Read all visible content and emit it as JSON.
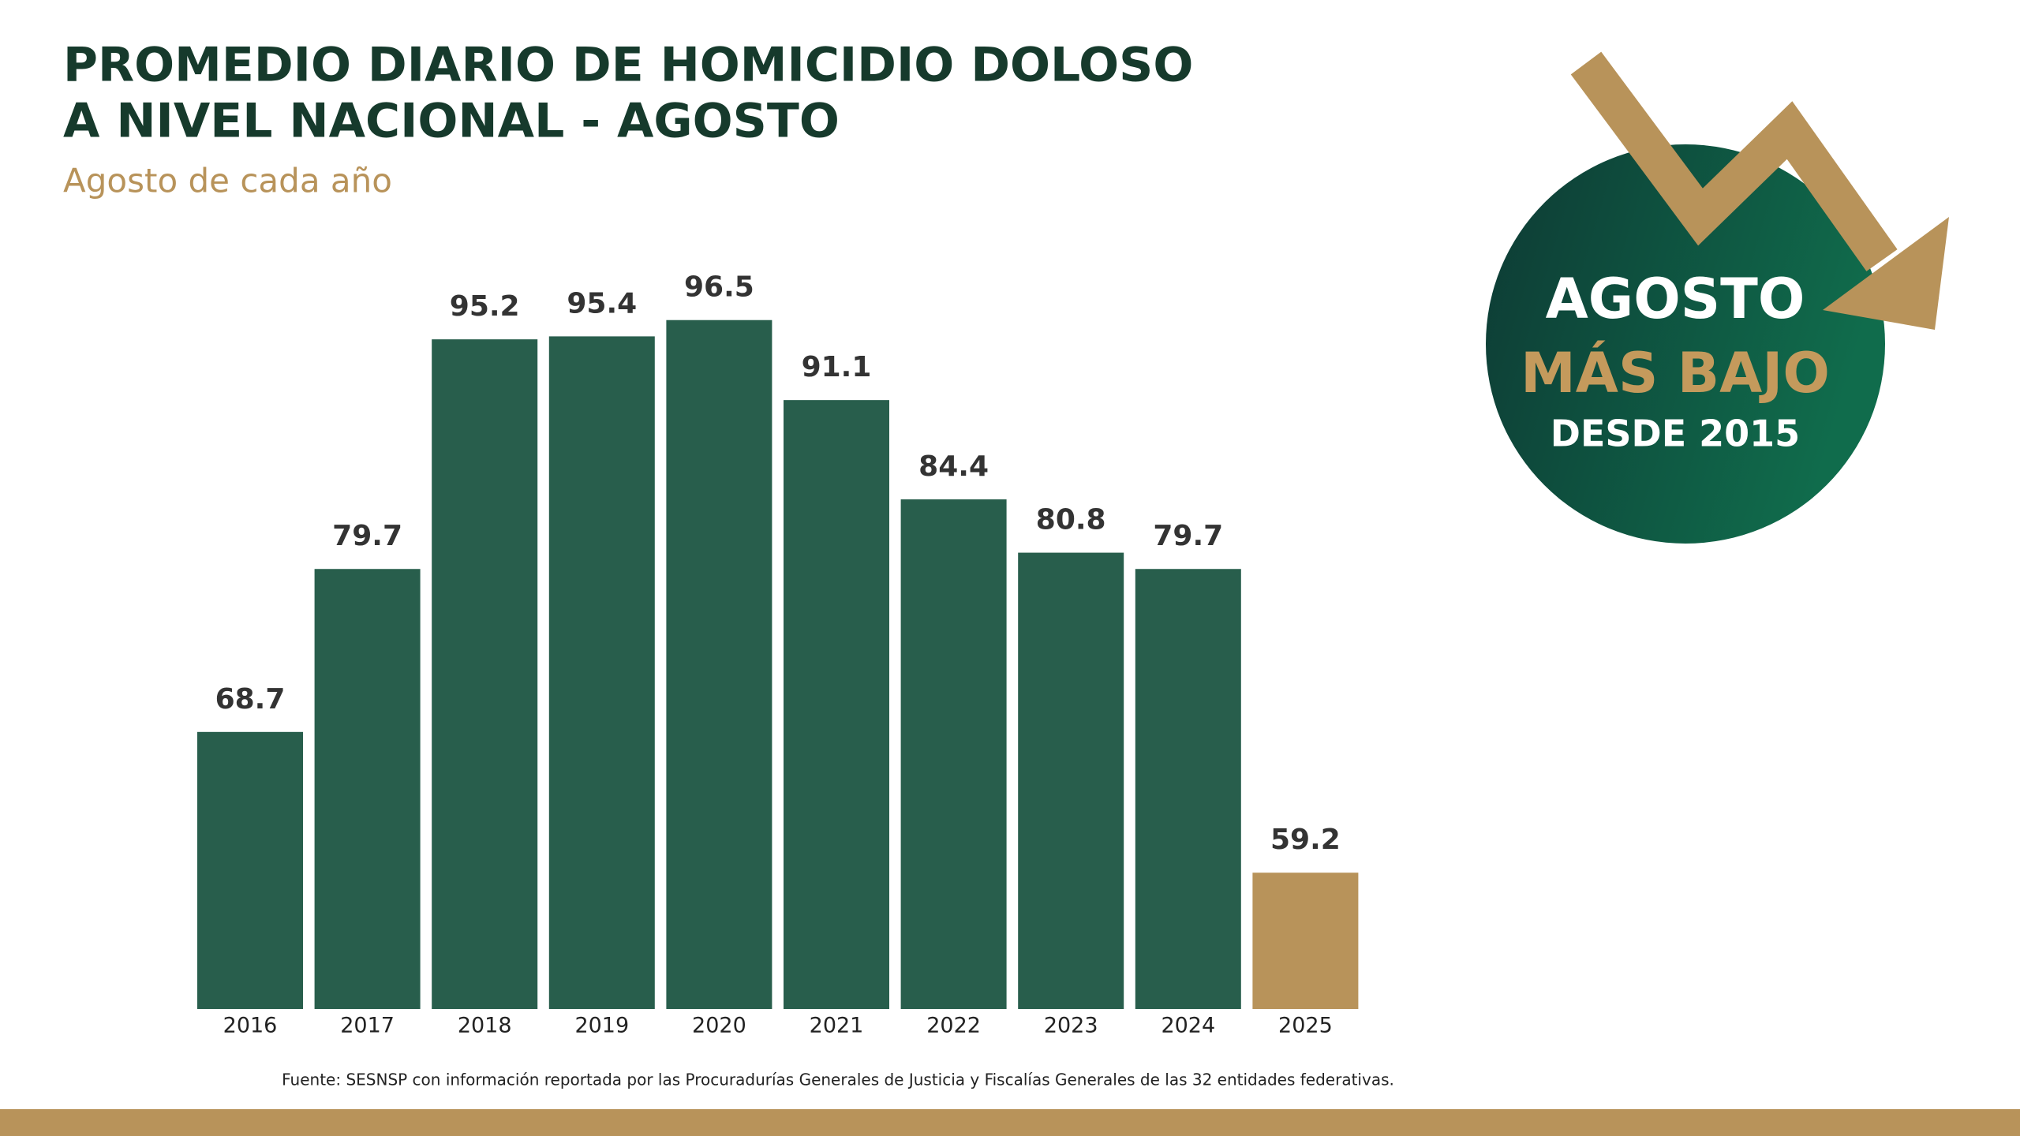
{
  "chart_data": {
    "type": "bar",
    "title": [
      "PROMEDIO DIARIO DE HOMICIDIO DOLOSO",
      "A NIVEL NACIONAL - AGOSTO"
    ],
    "subtitle": "Agosto de cada año",
    "categories": [
      "2016",
      "2017",
      "2018",
      "2019",
      "2020",
      "2021",
      "2022",
      "2023",
      "2024",
      "2025"
    ],
    "values": [
      68.7,
      79.7,
      95.2,
      95.4,
      96.5,
      91.1,
      84.4,
      80.8,
      79.7,
      59.2
    ],
    "colors": [
      "#285e4c",
      "#285e4c",
      "#285e4c",
      "#285e4c",
      "#285e4c",
      "#285e4c",
      "#285e4c",
      "#285e4c",
      "#285e4c",
      "#b8935a"
    ],
    "ylim": [
      50,
      100
    ],
    "source": "Fuente: SESNSP con información reportada por las Procuradurías Generales de Justicia y Fiscalías Generales de las 32 entidades federativas."
  },
  "badge": {
    "line1": "AGOSTO",
    "line2": "MÁS BAJO",
    "line3": "DESDE 2015"
  }
}
